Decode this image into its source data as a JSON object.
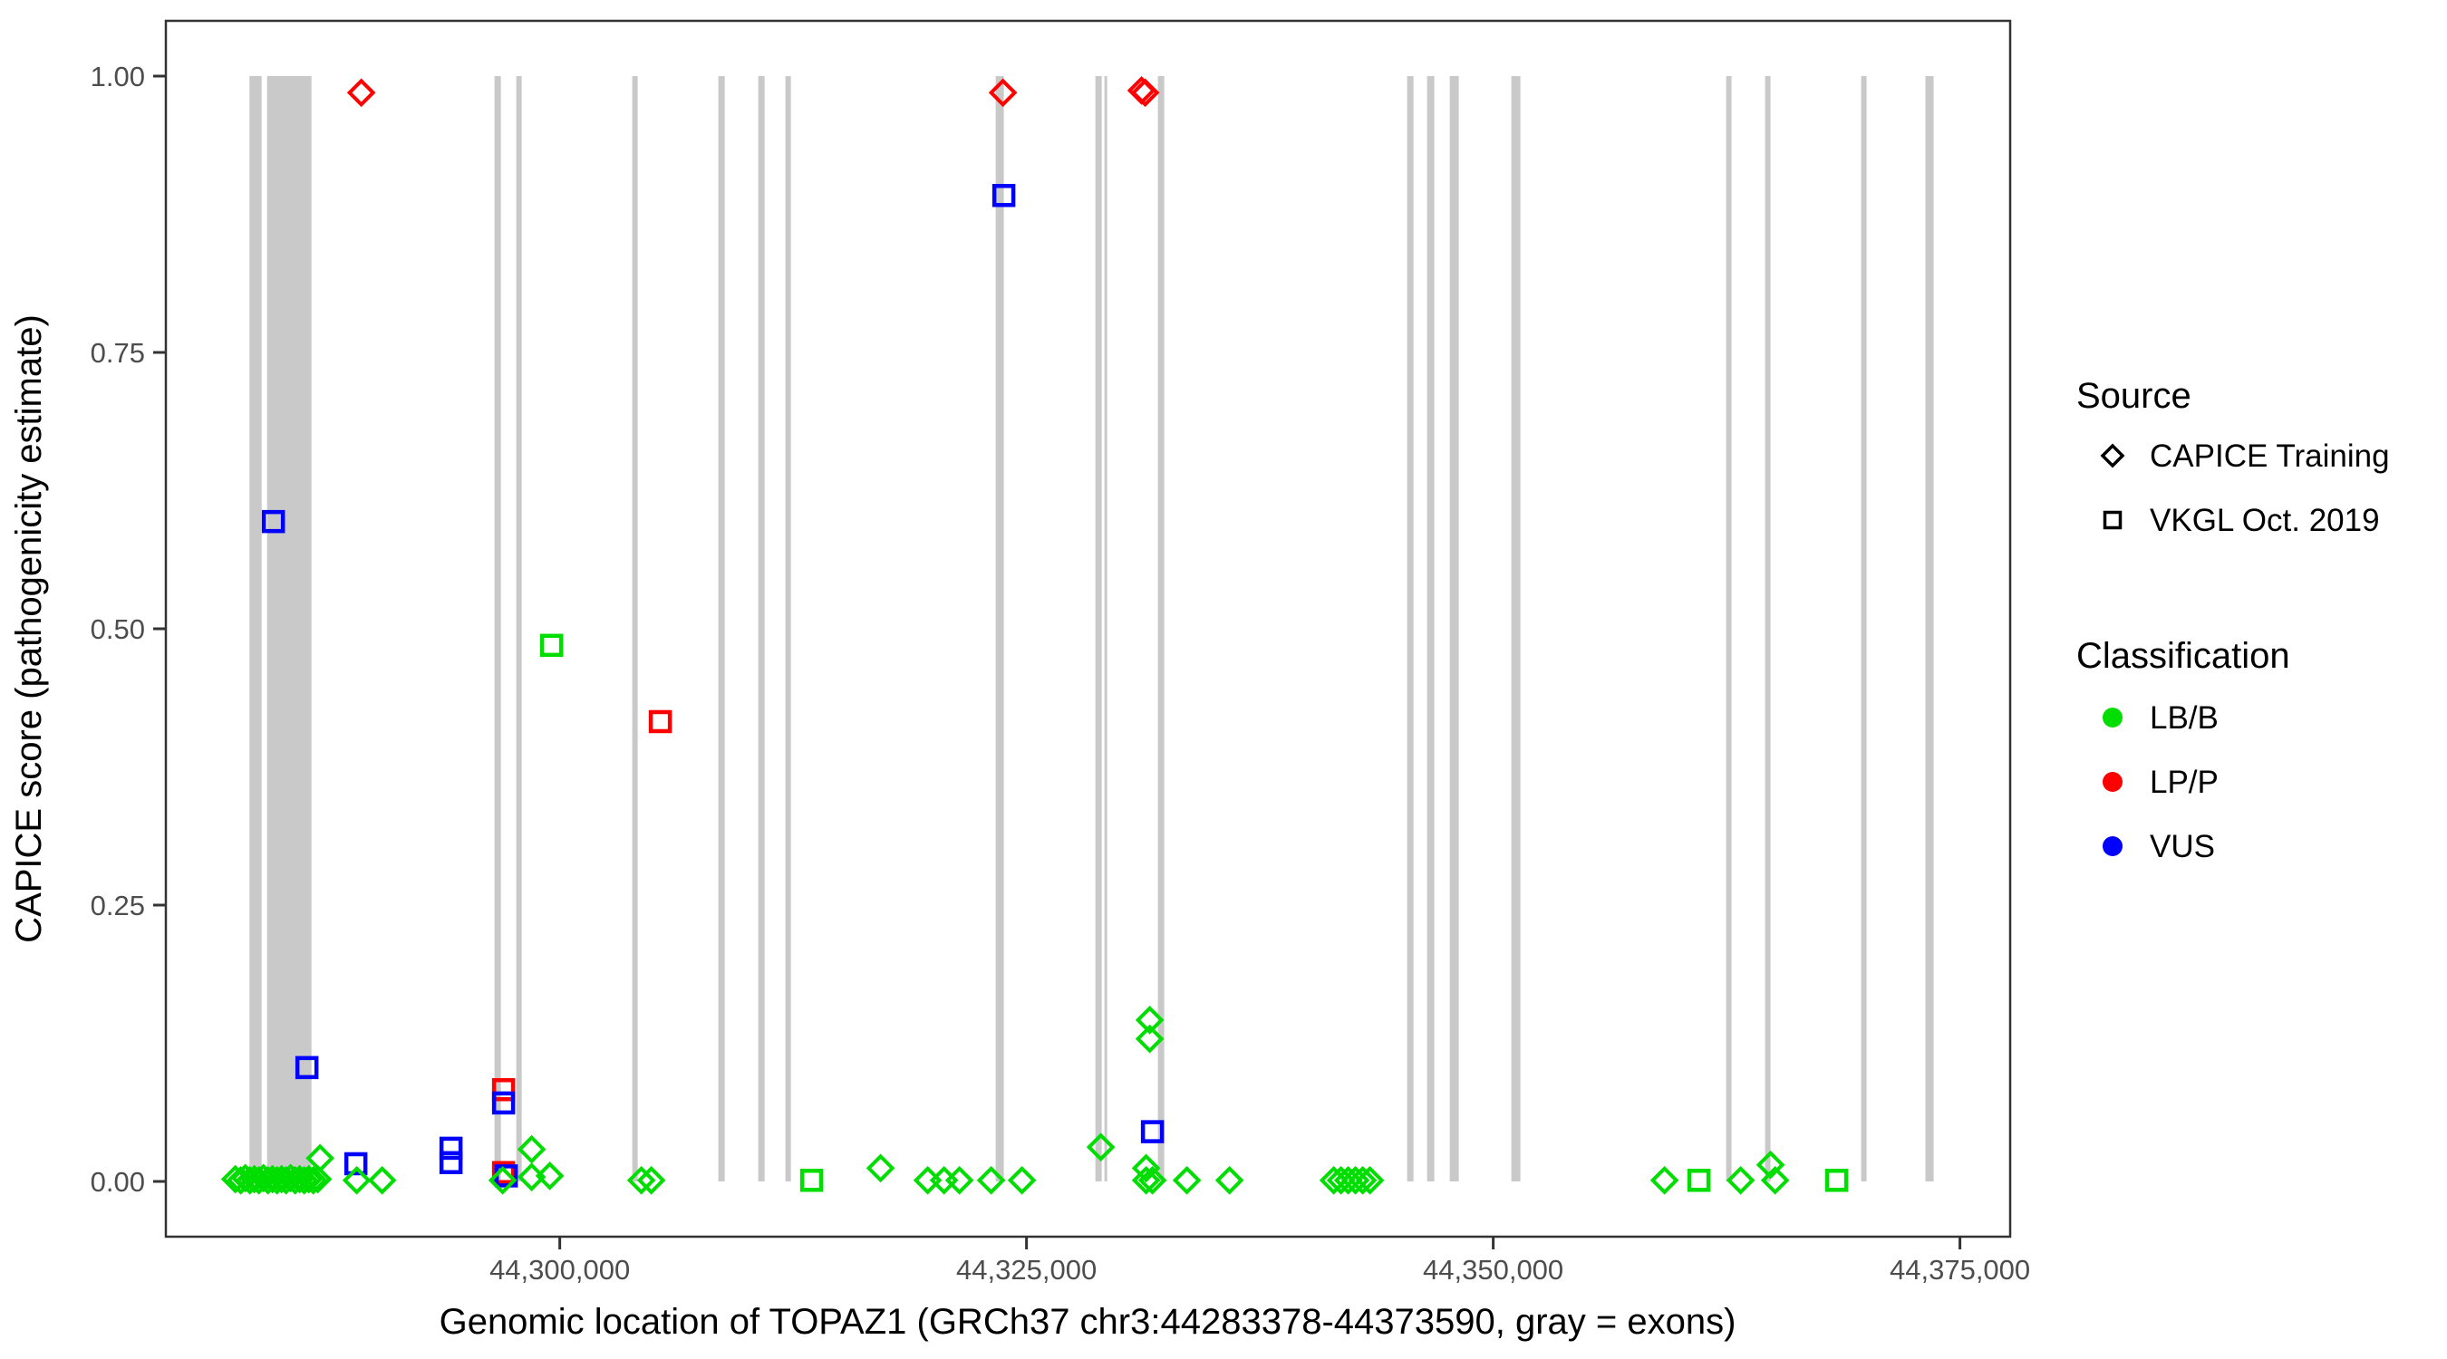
{
  "chart_data": {
    "type": "scatter",
    "title": "",
    "xlabel": "Genomic location of TOPAZ1 (GRCh37 chr3:44283378-44373590, gray = exons)",
    "ylabel": "CAPICE score (pathogenicity estimate)",
    "x_range": [
      44278900,
      44377690
    ],
    "y_range": [
      -0.05,
      1.05
    ],
    "grid": false,
    "x_ticks": {
      "values": [
        44300000,
        44325000,
        44350000,
        44375000
      ],
      "labels": [
        "44,300,000",
        "44,325,000",
        "44,350,000",
        "44,375,000"
      ]
    },
    "y_ticks": {
      "values": [
        0,
        0.25,
        0.5,
        0.75,
        1
      ],
      "labels": [
        "0.00",
        "0.25",
        "0.50",
        "0.75",
        "1.00"
      ]
    },
    "gene": {
      "name": "TOPAZ1",
      "assembly": "GRCh37",
      "chrom": "chr3",
      "start": 44283378,
      "end": 44373590
    },
    "exon_color": "#c9c9c9",
    "exons": [
      [
        44283378,
        44284030
      ],
      [
        44284321,
        44286700
      ],
      [
        44296505,
        44296845
      ],
      [
        44297670,
        44297961
      ],
      [
        44303883,
        44304175
      ],
      [
        44308495,
        44308835
      ],
      [
        44310631,
        44310971
      ],
      [
        44312087,
        44312379
      ],
      [
        44323349,
        44323786
      ],
      [
        44328690,
        44329029
      ],
      [
        44329175,
        44329320
      ],
      [
        44332039,
        44332379
      ],
      [
        44345388,
        44345728
      ],
      [
        44346456,
        44346845
      ],
      [
        44347670,
        44348155
      ],
      [
        44350971,
        44351456
      ],
      [
        44362476,
        44362767
      ],
      [
        44364563,
        44364854
      ],
      [
        44369709,
        44370000
      ],
      [
        44373150,
        44373590
      ]
    ],
    "series_colors": {
      "LB/B": "#00dd00",
      "LP/P": "#ff0000",
      "VUS": "#0000ff"
    },
    "points": [
      {
        "bp": 44282621,
        "score": 0.002,
        "src": "CAPICE Training",
        "cls": "LB/B"
      },
      {
        "bp": 44282912,
        "score": 0.001,
        "src": "CAPICE Training",
        "cls": "LB/B"
      },
      {
        "bp": 44283155,
        "score": 0.003,
        "src": "CAPICE Training",
        "cls": "LB/B"
      },
      {
        "bp": 44283398,
        "score": 0.001,
        "src": "CAPICE Training",
        "cls": "LB/B"
      },
      {
        "bp": 44283640,
        "score": 0.002,
        "src": "CAPICE Training",
        "cls": "LB/B"
      },
      {
        "bp": 44283883,
        "score": 0.001,
        "src": "CAPICE Training",
        "cls": "LB/B"
      },
      {
        "bp": 44284126,
        "score": 0.003,
        "src": "CAPICE Training",
        "cls": "LB/B"
      },
      {
        "bp": 44284369,
        "score": 0.001,
        "src": "CAPICE Training",
        "cls": "LB/B"
      },
      {
        "bp": 44284611,
        "score": 0.002,
        "src": "CAPICE Training",
        "cls": "LB/B"
      },
      {
        "bp": 44284854,
        "score": 0.001,
        "src": "CAPICE Training",
        "cls": "LB/B"
      },
      {
        "bp": 44285097,
        "score": 0.002,
        "src": "CAPICE Training",
        "cls": "LB/B"
      },
      {
        "bp": 44285339,
        "score": 0.001,
        "src": "CAPICE Training",
        "cls": "LB/B"
      },
      {
        "bp": 44285582,
        "score": 0.003,
        "src": "CAPICE Training",
        "cls": "LB/B"
      },
      {
        "bp": 44285825,
        "score": 0.001,
        "src": "CAPICE Training",
        "cls": "LB/B"
      },
      {
        "bp": 44286068,
        "score": 0.002,
        "src": "CAPICE Training",
        "cls": "LB/B"
      },
      {
        "bp": 44286310,
        "score": 0.001,
        "src": "CAPICE Training",
        "cls": "LB/B"
      },
      {
        "bp": 44286553,
        "score": 0.002,
        "src": "CAPICE Training",
        "cls": "LB/B"
      },
      {
        "bp": 44286796,
        "score": 0.001,
        "src": "CAPICE Training",
        "cls": "LB/B"
      },
      {
        "bp": 44287038,
        "score": 0.002,
        "src": "CAPICE Training",
        "cls": "LB/B"
      },
      {
        "bp": 44287160,
        "score": 0.021,
        "src": "CAPICE Training",
        "cls": "LB/B"
      },
      {
        "bp": 44289369,
        "score": 0.985,
        "src": "CAPICE Training",
        "cls": "LP/P"
      },
      {
        "bp": 44284661,
        "score": 0.597,
        "src": "VKGL Oct. 2019",
        "cls": "VUS"
      },
      {
        "bp": 44286457,
        "score": 0.103,
        "src": "VKGL Oct. 2019",
        "cls": "VUS"
      },
      {
        "bp": 44289078,
        "score": 0.016,
        "src": "VKGL Oct. 2019",
        "cls": "VUS"
      },
      {
        "bp": 44289126,
        "score": 0.001,
        "src": "CAPICE Training",
        "cls": "LB/B"
      },
      {
        "bp": 44290485,
        "score": 0.001,
        "src": "CAPICE Training",
        "cls": "LB/B"
      },
      {
        "bp": 44294175,
        "score": 0.03,
        "src": "VKGL Oct. 2019",
        "cls": "VUS"
      },
      {
        "bp": 44294175,
        "score": 0.017,
        "src": "VKGL Oct. 2019",
        "cls": "VUS"
      },
      {
        "bp": 44296990,
        "score": 0.083,
        "src": "VKGL Oct. 2019",
        "cls": "LP/P"
      },
      {
        "bp": 44296990,
        "score": 0.071,
        "src": "VKGL Oct. 2019",
        "cls": "VUS"
      },
      {
        "bp": 44296990,
        "score": 0.008,
        "src": "VKGL Oct. 2019",
        "cls": "LP/P"
      },
      {
        "bp": 44297135,
        "score": 0.005,
        "src": "VKGL Oct. 2019",
        "cls": "VUS"
      },
      {
        "bp": 44296941,
        "score": 0.001,
        "src": "CAPICE Training",
        "cls": "LB/B"
      },
      {
        "bp": 44298495,
        "score": 0.029,
        "src": "CAPICE Training",
        "cls": "LB/B"
      },
      {
        "bp": 44298495,
        "score": 0.004,
        "src": "CAPICE Training",
        "cls": "LB/B"
      },
      {
        "bp": 44299466,
        "score": 0.005,
        "src": "CAPICE Training",
        "cls": "LB/B"
      },
      {
        "bp": 44299563,
        "score": 0.485,
        "src": "VKGL Oct. 2019",
        "cls": "LB/B"
      },
      {
        "bp": 44305388,
        "score": 0.416,
        "src": "VKGL Oct. 2019",
        "cls": "LP/P"
      },
      {
        "bp": 44304369,
        "score": 0.001,
        "src": "CAPICE Training",
        "cls": "LB/B"
      },
      {
        "bp": 44304903,
        "score": 0.001,
        "src": "CAPICE Training",
        "cls": "LB/B"
      },
      {
        "bp": 44313495,
        "score": 0.001,
        "src": "VKGL Oct. 2019",
        "cls": "LB/B"
      },
      {
        "bp": 44317184,
        "score": 0.012,
        "src": "CAPICE Training",
        "cls": "LB/B"
      },
      {
        "bp": 44319709,
        "score": 0.001,
        "src": "CAPICE Training",
        "cls": "LB/B"
      },
      {
        "bp": 44320583,
        "score": 0.001,
        "src": "CAPICE Training",
        "cls": "LB/B"
      },
      {
        "bp": 44321408,
        "score": 0.001,
        "src": "CAPICE Training",
        "cls": "LB/B"
      },
      {
        "bp": 44323107,
        "score": 0.001,
        "src": "CAPICE Training",
        "cls": "LB/B"
      },
      {
        "bp": 44324757,
        "score": 0.001,
        "src": "CAPICE Training",
        "cls": "LB/B"
      },
      {
        "bp": 44323738,
        "score": 0.985,
        "src": "CAPICE Training",
        "cls": "LP/P"
      },
      {
        "bp": 44323786,
        "score": 0.892,
        "src": "VKGL Oct. 2019",
        "cls": "VUS"
      },
      {
        "bp": 44328981,
        "score": 0.031,
        "src": "CAPICE Training",
        "cls": "LB/B"
      },
      {
        "bp": 44331164,
        "score": 0.987,
        "src": "CAPICE Training",
        "cls": "LP/P"
      },
      {
        "bp": 44331358,
        "score": 0.985,
        "src": "CAPICE Training",
        "cls": "LP/P"
      },
      {
        "bp": 44331602,
        "score": 0.146,
        "src": "CAPICE Training",
        "cls": "LB/B"
      },
      {
        "bp": 44331602,
        "score": 0.129,
        "src": "CAPICE Training",
        "cls": "LB/B"
      },
      {
        "bp": 44331748,
        "score": 0.045,
        "src": "VKGL Oct. 2019",
        "cls": "VUS"
      },
      {
        "bp": 44331408,
        "score": 0.012,
        "src": "CAPICE Training",
        "cls": "LB/B"
      },
      {
        "bp": 44331408,
        "score": 0.001,
        "src": "CAPICE Training",
        "cls": "LB/B"
      },
      {
        "bp": 44331748,
        "score": 0.001,
        "src": "CAPICE Training",
        "cls": "LB/B"
      },
      {
        "bp": 44333592,
        "score": 0.001,
        "src": "CAPICE Training",
        "cls": "LB/B"
      },
      {
        "bp": 44335874,
        "score": 0.001,
        "src": "CAPICE Training",
        "cls": "LB/B"
      },
      {
        "bp": 44341456,
        "score": 0.001,
        "src": "CAPICE Training",
        "cls": "LB/B"
      },
      {
        "bp": 44341845,
        "score": 0.001,
        "src": "CAPICE Training",
        "cls": "LB/B"
      },
      {
        "bp": 44342233,
        "score": 0.001,
        "src": "CAPICE Training",
        "cls": "LB/B"
      },
      {
        "bp": 44342621,
        "score": 0.001,
        "src": "CAPICE Training",
        "cls": "LB/B"
      },
      {
        "bp": 44343010,
        "score": 0.001,
        "src": "CAPICE Training",
        "cls": "LB/B"
      },
      {
        "bp": 44343398,
        "score": 0.001,
        "src": "CAPICE Training",
        "cls": "LB/B"
      },
      {
        "bp": 44359175,
        "score": 0.001,
        "src": "CAPICE Training",
        "cls": "LB/B"
      },
      {
        "bp": 44361019,
        "score": 0.001,
        "src": "VKGL Oct. 2019",
        "cls": "LB/B"
      },
      {
        "bp": 44363252,
        "score": 0.001,
        "src": "CAPICE Training",
        "cls": "LB/B"
      },
      {
        "bp": 44364854,
        "score": 0.015,
        "src": "CAPICE Training",
        "cls": "LB/B"
      },
      {
        "bp": 44365101,
        "score": 0.001,
        "src": "CAPICE Training",
        "cls": "LB/B"
      },
      {
        "bp": 44368398,
        "score": 0.001,
        "src": "VKGL Oct. 2019",
        "cls": "LB/B"
      }
    ]
  },
  "legend": {
    "source_title": "Source",
    "source_items": [
      {
        "label": "CAPICE Training",
        "marker": "diamond-icon"
      },
      {
        "label": "VKGL Oct. 2019",
        "marker": "square-icon"
      }
    ],
    "classification_title": "Classification",
    "classification_items": [
      {
        "label": "LB/B",
        "color": "#00dd00"
      },
      {
        "label": "LP/P",
        "color": "#ff0000"
      },
      {
        "label": "VUS",
        "color": "#0000ff"
      }
    ]
  }
}
